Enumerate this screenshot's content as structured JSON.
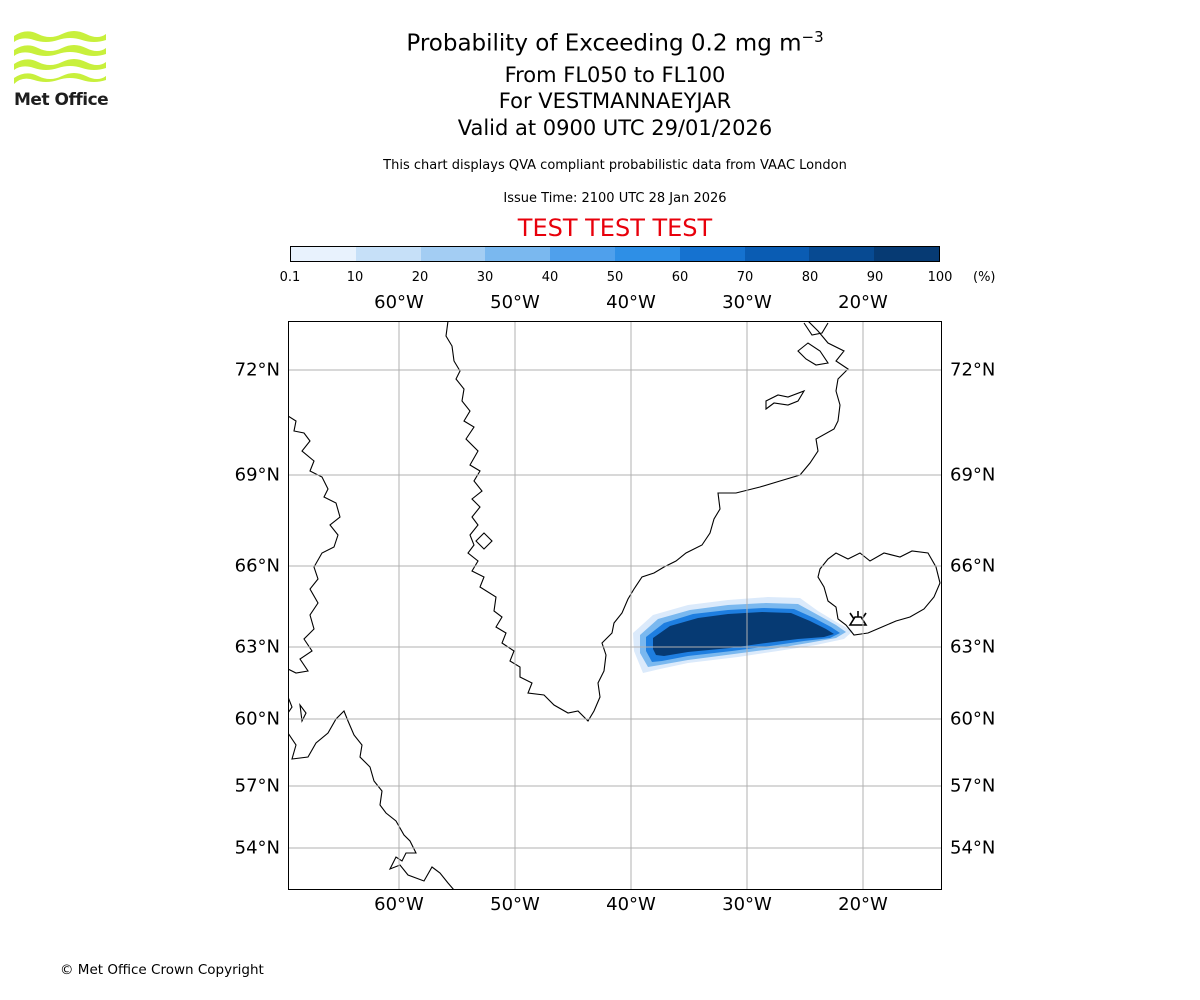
{
  "brand": {
    "name": "Met Office",
    "logo_color": "#c8f03c"
  },
  "title": {
    "line1": "Probability of Exceeding 0.2 mg m",
    "line1_exp": "−3",
    "line2": "From FL050 to FL100",
    "line3": "For VESTMANNAEYJAR",
    "line4": "Valid at 0900 UTC 29/01/2026"
  },
  "subtitle": "This chart displays QVA compliant probabilistic data from VAAC London",
  "issue_time": "Issue Time: 2100 UTC 28 Jan 2026",
  "test_banner": "TEST TEST TEST",
  "colorbar": {
    "unit": "(%)",
    "ticks": [
      "0.1",
      "10",
      "20",
      "30",
      "40",
      "50",
      "60",
      "70",
      "80",
      "90",
      "100"
    ],
    "colors": [
      "#e8f2fd",
      "#c6e0f8",
      "#a3cdf3",
      "#7ab8ef",
      "#4fa0ec",
      "#2e8fe6",
      "#1572d0",
      "#0a5cb3",
      "#074a92",
      "#063a73",
      "#032c58"
    ]
  },
  "map": {
    "lon_labels_top": [
      "60°W",
      "50°W",
      "40°W",
      "30°W",
      "20°W"
    ],
    "lon_labels_bottom": [
      "60°W",
      "50°W",
      "40°W",
      "30°W",
      "20°W"
    ],
    "lat_labels_left": [
      "72°N",
      "69°N",
      "66°N",
      "63°N",
      "60°N",
      "57°N",
      "54°N"
    ],
    "lat_labels_right": [
      "72°N",
      "69°N",
      "66°N",
      "63°N",
      "60°N",
      "57°N",
      "54°N"
    ],
    "volcano_marker": "VESTMANNAEYJAR"
  },
  "copyright": "© Met Office Crown Copyright"
}
